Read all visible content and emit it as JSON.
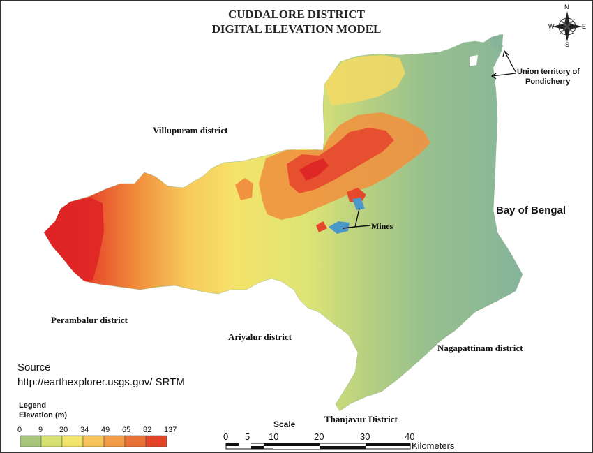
{
  "title_line1": "CUDDALORE DISTRICT",
  "title_line2": "DIGITAL ELEVATION MODEL",
  "compass": {
    "n": "N",
    "s": "S",
    "e": "E",
    "w": "W"
  },
  "labels": {
    "villupuram": "Villupuram district",
    "perambalur": "Perambalur district",
    "ariyalur": "Ariyalur district",
    "nagapattinam": "Nagapattinam district",
    "thanjavur": "Thanjavur District",
    "bay": "Bay of Bengal",
    "mines": "Mines",
    "ut_line1": "Union territory of",
    "ut_line2": "Pondicherry"
  },
  "source": {
    "label": "Source",
    "url": "http://earthexplorer.usgs.gov/ SRTM"
  },
  "legend": {
    "title": "Legend",
    "subtitle": "Elevation (m)",
    "ticks": [
      "0",
      "9",
      "20",
      "34",
      "49",
      "65",
      "82",
      "137"
    ],
    "colors": [
      "#a9c77c",
      "#d5e06e",
      "#f2e46a",
      "#f7c45a",
      "#f39c47",
      "#ea7136",
      "#e34326"
    ]
  },
  "scale": {
    "title": "Scale",
    "ticks": [
      "0",
      "5",
      "10",
      "20",
      "30",
      "40"
    ],
    "unit": "Kilometers"
  },
  "colors": {
    "water": "#4a97c8",
    "coast": "#86b49a"
  }
}
